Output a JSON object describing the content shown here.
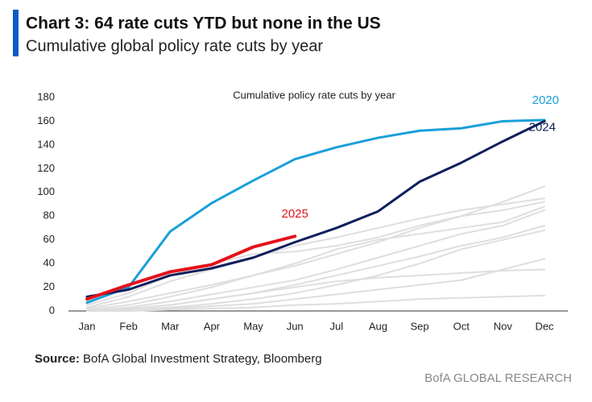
{
  "chart_data": {
    "type": "line",
    "title": "Chart 3: 64 rate cuts YTD but none in the US",
    "subtitle": "Cumulative global policy rate cuts by year",
    "plot_title": "Cumulative policy rate cuts by year",
    "source_label": "Source:",
    "source": "BofA Global Investment Strategy, Bloomberg",
    "footer": "BofA GLOBAL RESEARCH",
    "categories": [
      "Jan",
      "Feb",
      "Mar",
      "Apr",
      "May",
      "Jun",
      "Jul",
      "Aug",
      "Sep",
      "Oct",
      "Nov",
      "Dec"
    ],
    "ylim": [
      0,
      180
    ],
    "yticks": [
      0,
      20,
      40,
      60,
      80,
      100,
      120,
      140,
      160,
      180
    ],
    "grid": false,
    "series": [
      {
        "color": "#dedede",
        "values": [
          5,
          15,
          30,
          40,
          48,
          50,
          55,
          62,
          72,
          80,
          92,
          105
        ]
      },
      {
        "color": "#dedede",
        "values": [
          3,
          12,
          25,
          35,
          45,
          55,
          62,
          70,
          78,
          85,
          90,
          95
        ]
      },
      {
        "color": "#dedede",
        "values": [
          2,
          8,
          15,
          22,
          30,
          38,
          48,
          58,
          70,
          80,
          85,
          92
        ]
      },
      {
        "color": "#dedede",
        "values": [
          1,
          5,
          12,
          20,
          30,
          40,
          52,
          60,
          65,
          70,
          75,
          88
        ]
      },
      {
        "color": "#dedede",
        "values": [
          0,
          3,
          8,
          14,
          20,
          26,
          35,
          45,
          55,
          65,
          72,
          85
        ]
      },
      {
        "color": "#dedede",
        "values": [
          0,
          2,
          5,
          10,
          15,
          22,
          30,
          38,
          46,
          55,
          62,
          72
        ]
      },
      {
        "color": "#dedede",
        "values": [
          0,
          1,
          3,
          6,
          10,
          15,
          22,
          30,
          40,
          52,
          60,
          68
        ]
      },
      {
        "color": "#dedede",
        "values": [
          0,
          0,
          2,
          4,
          6,
          10,
          14,
          18,
          22,
          26,
          35,
          44
        ]
      },
      {
        "color": "#dedede",
        "values": [
          0,
          0,
          1,
          2,
          3,
          5,
          6,
          8,
          10,
          11,
          12,
          13
        ]
      },
      {
        "color": "#dedede",
        "values": [
          0,
          2,
          5,
          10,
          15,
          20,
          25,
          28,
          30,
          32,
          34,
          35
        ]
      },
      {
        "name": "2020",
        "color": "#1a9fd9",
        "values": [
          7,
          20,
          67,
          91,
          110,
          128,
          138,
          146,
          152,
          154,
          160,
          161
        ]
      },
      {
        "name": "2024",
        "color": "#0b1f5c",
        "values": [
          12,
          18,
          30,
          36,
          45,
          58,
          70,
          84,
          109,
          125,
          143,
          160
        ]
      },
      {
        "name": "2025",
        "color": "#e3121b",
        "values": [
          10,
          22,
          33,
          39,
          54,
          63,
          null,
          null,
          null,
          null,
          null,
          null
        ]
      }
    ]
  }
}
